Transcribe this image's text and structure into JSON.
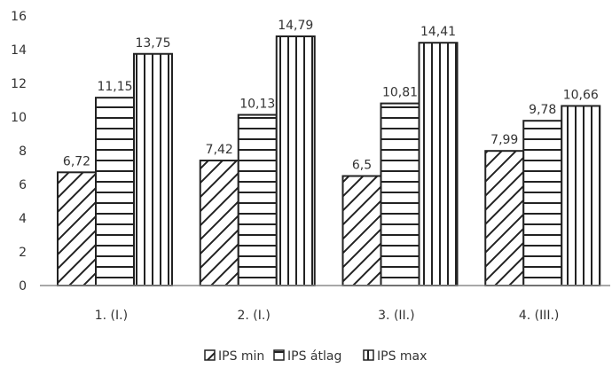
{
  "chart_data": {
    "type": "bar",
    "categories": [
      "1. (I.)",
      "2. (I.)",
      "3. (II.)",
      "4. (III.)"
    ],
    "series": [
      {
        "name": "IPS min",
        "values": [
          6.72,
          7.42,
          6.5,
          7.99
        ],
        "labels": [
          "6,72",
          "7,42",
          "6,5",
          "7,99"
        ],
        "pattern": "diagonal"
      },
      {
        "name": "IPS átlag",
        "values": [
          11.15,
          10.13,
          10.81,
          9.78
        ],
        "labels": [
          "11,15",
          "10,13",
          "10,81",
          "9,78"
        ],
        "pattern": "horizontal"
      },
      {
        "name": "IPS max",
        "values": [
          13.75,
          14.79,
          14.41,
          10.66
        ],
        "labels": [
          "13,75",
          "14,79",
          "14,41",
          "10,66"
        ],
        "pattern": "vertical"
      }
    ],
    "yticks": [
      "0",
      "2",
      "4",
      "6",
      "8",
      "10",
      "12",
      "14",
      "16"
    ],
    "ylim": [
      0,
      16
    ],
    "grid": false,
    "legend_position": "bottom",
    "title": "",
    "xlabel": "",
    "ylabel": ""
  }
}
